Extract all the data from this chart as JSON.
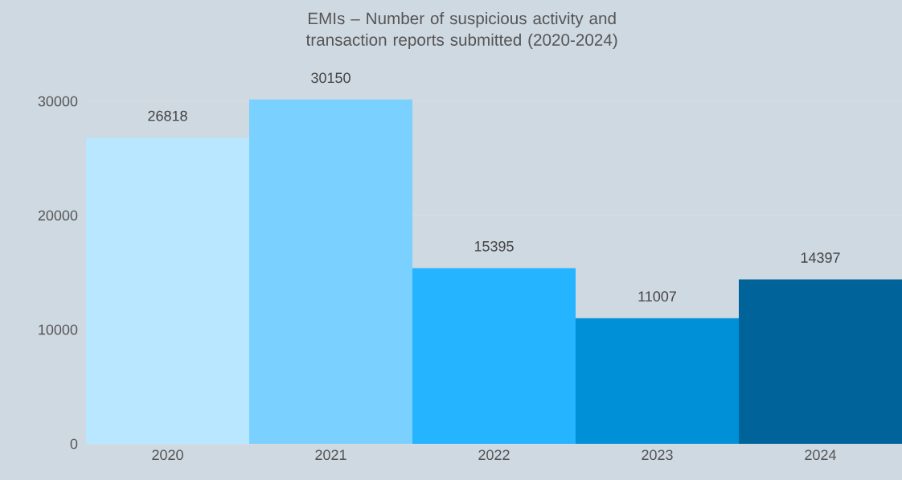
{
  "chart_data": {
    "type": "bar",
    "title": "EMIs – Number of suspicious activity and transaction reports submitted (2020-2024)",
    "categories": [
      "2020",
      "2021",
      "2022",
      "2023",
      "2024"
    ],
    "values": [
      26818,
      30150,
      15395,
      11007,
      14397
    ],
    "colors": [
      "#b9e7ff",
      "#7ad0ff",
      "#25b4ff",
      "#0090d8",
      "#00649a"
    ],
    "ylim": [
      0,
      30150
    ],
    "yticks": [
      0,
      10000,
      20000,
      30000
    ],
    "grid": "y",
    "data_labels": true
  }
}
